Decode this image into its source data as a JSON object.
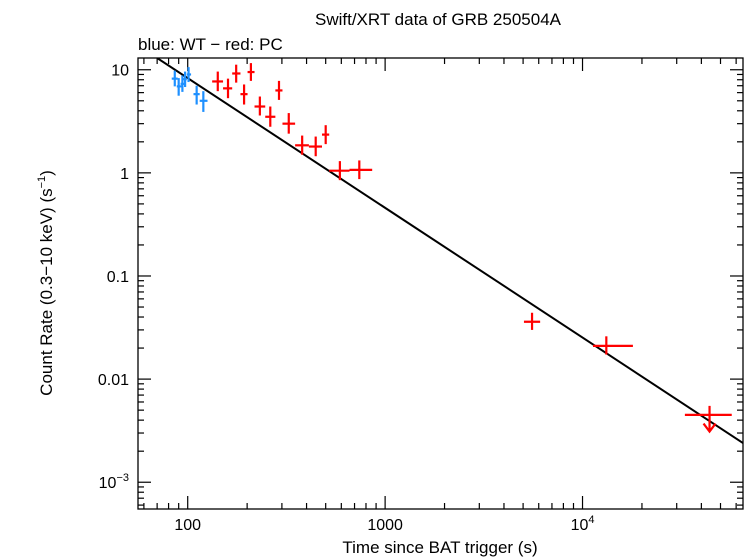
{
  "chart_data": {
    "type": "scatter",
    "title": "Swift/XRT data of GRB 250504A",
    "subtitle": "blue: WT − red: PC",
    "xlabel": "Time since BAT trigger (s)",
    "ylabel_main": "Count Rate (0.3−10 keV) (s",
    "ylabel_sup": "−1",
    "ylabel_close": ")",
    "xscale": "log",
    "yscale": "log",
    "xlim": [
      56,
      65000
    ],
    "ylim": [
      0.00055,
      13
    ],
    "x_ticks": [
      {
        "value": 100,
        "base": "100",
        "sup": ""
      },
      {
        "value": 1000,
        "base": "1000",
        "sup": ""
      },
      {
        "value": 10000,
        "base": "10",
        "sup": "4"
      }
    ],
    "y_ticks": [
      {
        "value": 10,
        "base": "10",
        "sup": ""
      },
      {
        "value": 1,
        "base": "1",
        "sup": ""
      },
      {
        "value": 0.1,
        "base": "0.1",
        "sup": ""
      },
      {
        "value": 0.01,
        "base": "0.01",
        "sup": ""
      },
      {
        "value": 0.001,
        "base": "10",
        "sup": "−3"
      }
    ],
    "series": [
      {
        "name": "WT",
        "color": "#1e90ff",
        "points": [
          {
            "x": 86,
            "xlo": 83,
            "xhi": 89,
            "y": 8.2,
            "ylo": 6.9,
            "yhi": 9.8
          },
          {
            "x": 90,
            "xlo": 88,
            "xhi": 93,
            "y": 6.9,
            "ylo": 5.6,
            "yhi": 8.3
          },
          {
            "x": 94,
            "xlo": 92,
            "xhi": 96,
            "y": 7.3,
            "ylo": 6.1,
            "yhi": 8.8
          },
          {
            "x": 97,
            "xlo": 95,
            "xhi": 99,
            "y": 8.1,
            "ylo": 6.8,
            "yhi": 9.6
          },
          {
            "x": 101,
            "xlo": 99,
            "xhi": 104,
            "y": 9.0,
            "ylo": 7.6,
            "yhi": 10.6
          },
          {
            "x": 111,
            "xlo": 107,
            "xhi": 115,
            "y": 5.8,
            "ylo": 4.6,
            "yhi": 7.0
          },
          {
            "x": 120,
            "xlo": 115,
            "xhi": 126,
            "y": 5.0,
            "ylo": 3.9,
            "yhi": 6.2
          }
        ]
      },
      {
        "name": "PC",
        "color": "#ff0000",
        "points": [
          {
            "x": 142,
            "xlo": 133,
            "xhi": 151,
            "y": 7.7,
            "ylo": 6.2,
            "yhi": 9.6
          },
          {
            "x": 160,
            "xlo": 151,
            "xhi": 168,
            "y": 6.6,
            "ylo": 5.3,
            "yhi": 8.2
          },
          {
            "x": 176,
            "xlo": 168,
            "xhi": 185,
            "y": 9.2,
            "ylo": 7.5,
            "yhi": 11.2
          },
          {
            "x": 193,
            "xlo": 185,
            "xhi": 201,
            "y": 5.8,
            "ylo": 4.6,
            "yhi": 7.2
          },
          {
            "x": 209,
            "xlo": 201,
            "xhi": 218,
            "y": 9.5,
            "ylo": 7.8,
            "yhi": 11.6
          },
          {
            "x": 232,
            "xlo": 218,
            "xhi": 247,
            "y": 4.4,
            "ylo": 3.6,
            "yhi": 5.5
          },
          {
            "x": 262,
            "xlo": 247,
            "xhi": 278,
            "y": 3.5,
            "ylo": 2.8,
            "yhi": 4.4
          },
          {
            "x": 290,
            "xlo": 278,
            "xhi": 302,
            "y": 6.3,
            "ylo": 5.1,
            "yhi": 7.8
          },
          {
            "x": 325,
            "xlo": 302,
            "xhi": 350,
            "y": 3.0,
            "ylo": 2.4,
            "yhi": 3.8
          },
          {
            "x": 380,
            "xlo": 350,
            "xhi": 411,
            "y": 1.85,
            "ylo": 1.5,
            "yhi": 2.3
          },
          {
            "x": 445,
            "xlo": 411,
            "xhi": 479,
            "y": 1.8,
            "ylo": 1.45,
            "yhi": 2.25
          },
          {
            "x": 500,
            "xlo": 479,
            "xhi": 521,
            "y": 2.35,
            "ylo": 1.9,
            "yhi": 2.9
          },
          {
            "x": 590,
            "xlo": 521,
            "xhi": 660,
            "y": 1.05,
            "ylo": 0.85,
            "yhi": 1.3
          },
          {
            "x": 740,
            "xlo": 660,
            "xhi": 860,
            "y": 1.07,
            "ylo": 0.87,
            "yhi": 1.32
          },
          {
            "x": 5550,
            "xlo": 5050,
            "xhi": 6100,
            "y": 0.036,
            "ylo": 0.03,
            "yhi": 0.044
          },
          {
            "x": 13200,
            "xlo": 11300,
            "xhi": 18000,
            "y": 0.021,
            "ylo": 0.0173,
            "yhi": 0.026
          },
          {
            "x": 44000,
            "xlo": 33000,
            "xhi": 57000,
            "y": 0.0045,
            "ylo": 0.0031,
            "yhi": 0.0055,
            "upper_limit": true
          }
        ]
      }
    ],
    "fit_line": {
      "color": "#000000",
      "points": [
        {
          "x": 70,
          "y": 13
        },
        {
          "x": 65000,
          "y": 0.0024
        }
      ]
    }
  }
}
